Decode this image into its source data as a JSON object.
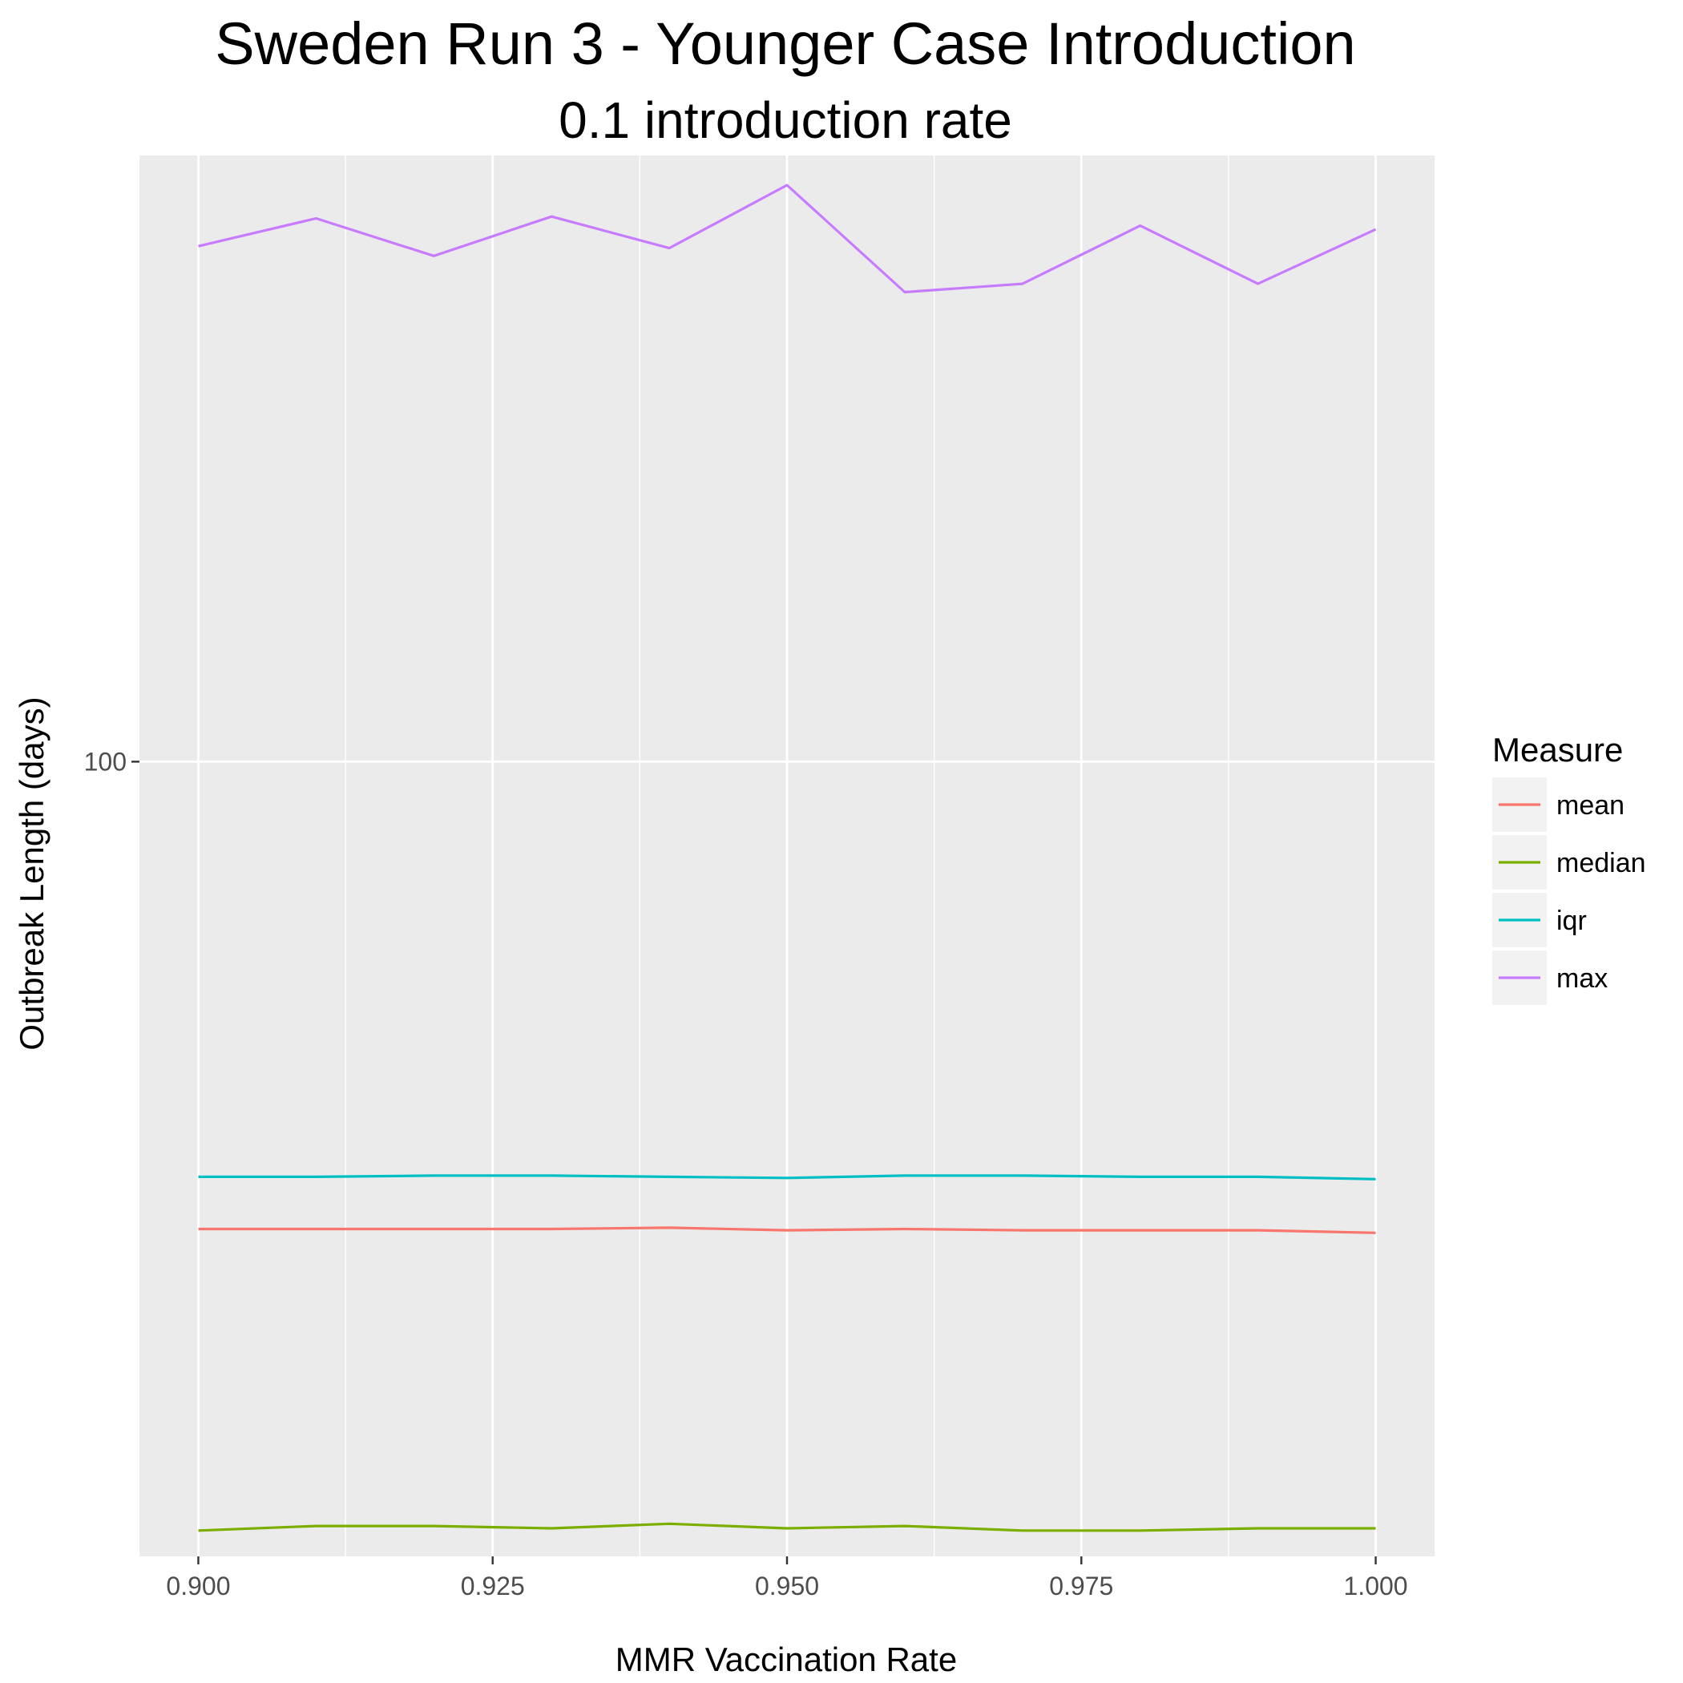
{
  "chart_data": {
    "type": "line",
    "title": "Sweden Run 3 - Younger Case Introduction",
    "subtitle": "0.1 introduction rate",
    "xlabel": "MMR Vaccination Rate",
    "ylabel": "Outbreak Length (days)",
    "y_scale": "log",
    "xlim": [
      0.895,
      1.005
    ],
    "ylim": [
      21.5,
      323
    ],
    "x_ticks": [
      0.9,
      0.925,
      0.95,
      0.975,
      1.0
    ],
    "x_tick_labels": [
      "0.900",
      "0.925",
      "0.950",
      "0.975",
      "1.000"
    ],
    "y_ticks": [
      100
    ],
    "y_tick_labels": [
      "100"
    ],
    "grid": true,
    "legend": {
      "title": "Measure",
      "position": "right"
    },
    "x": [
      0.9,
      0.91,
      0.92,
      0.93,
      0.94,
      0.95,
      0.96,
      0.97,
      0.98,
      0.99,
      1.0
    ],
    "series": [
      {
        "name": "mean",
        "color": "#F8766D",
        "values": [
          40.5,
          40.5,
          40.5,
          40.5,
          40.6,
          40.4,
          40.5,
          40.4,
          40.4,
          40.4,
          40.2
        ]
      },
      {
        "name": "median",
        "color": "#7CAE00",
        "values": [
          22.6,
          22.8,
          22.8,
          22.7,
          22.9,
          22.7,
          22.8,
          22.6,
          22.6,
          22.7,
          22.7
        ]
      },
      {
        "name": "iqr",
        "color": "#00BFC4",
        "values": [
          44.8,
          44.8,
          44.9,
          44.9,
          44.8,
          44.7,
          44.9,
          44.9,
          44.8,
          44.8,
          44.6
        ]
      },
      {
        "name": "max",
        "color": "#C77CFF",
        "values": [
          271,
          286,
          266,
          287,
          270,
          305,
          248,
          252,
          282,
          252,
          280
        ]
      }
    ]
  }
}
